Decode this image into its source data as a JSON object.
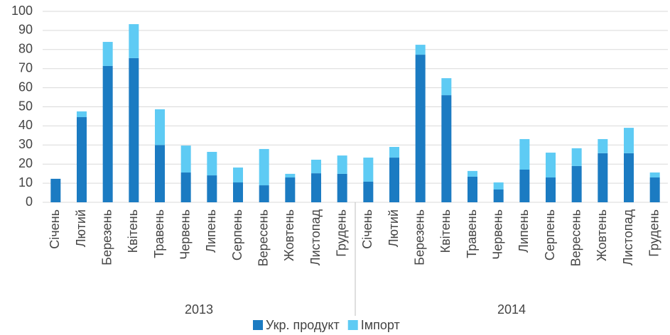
{
  "chart_data": {
    "type": "stacked_bar",
    "groups": [
      "2013",
      "2014"
    ],
    "categories": [
      "Січень",
      "Лютий",
      "Березень",
      "Квітень",
      "Травень",
      "Червень",
      "Липень",
      "Серпень",
      "Вересень",
      "Жовтень",
      "Листопад",
      "Грудень",
      "Січень",
      "Лютий",
      "Березень",
      "Квітень",
      "Травень",
      "Червень",
      "Липень",
      "Серпень",
      "Вересень",
      "Жовтень",
      "Листопад",
      "Грудень"
    ],
    "series": [
      {
        "name": "Укр. продукт",
        "color": "#1b7bc2",
        "values": [
          12.3,
          44.6,
          71.4,
          75.5,
          30,
          15.6,
          14.1,
          10.4,
          8.9,
          13,
          15.2,
          14.9,
          10.8,
          23.4,
          77.3,
          56.1,
          13.4,
          6.7,
          17.1,
          13,
          19,
          25.7,
          25.7,
          13
        ]
      },
      {
        "name": "Імпорт",
        "color": "#5ecbf4",
        "values": [
          0,
          3,
          12.6,
          17.8,
          18.7,
          14.1,
          12.3,
          7.8,
          19,
          1.9,
          7.1,
          9.6,
          12.6,
          5.6,
          5.2,
          8.9,
          3,
          3.7,
          16,
          13,
          9.3,
          7.4,
          13.3,
          2.6
        ]
      }
    ],
    "ylim": [
      0,
      100
    ],
    "yticks": [
      0,
      10,
      20,
      30,
      40,
      50,
      60,
      70,
      80,
      90,
      100
    ],
    "grid": true,
    "legend": "bottom"
  }
}
